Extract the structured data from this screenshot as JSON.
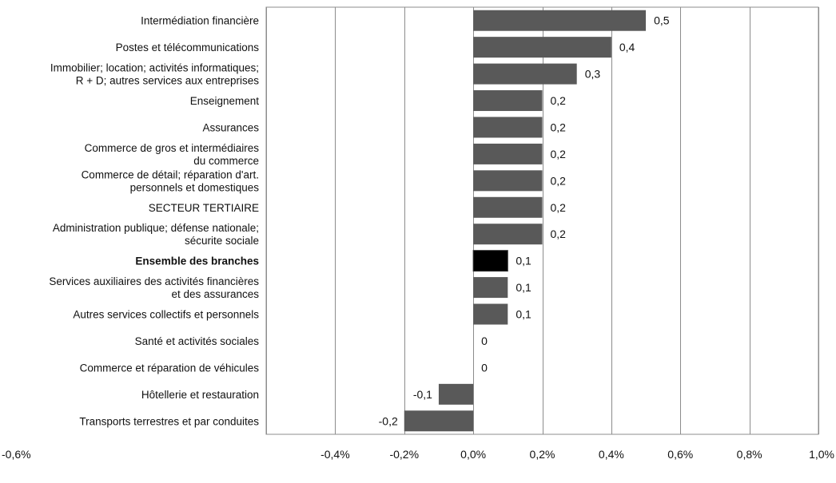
{
  "chart_data": {
    "type": "bar",
    "orientation": "horizontal",
    "categories": [
      [
        "Intermédiation financière"
      ],
      [
        "Postes et télécommunications"
      ],
      [
        "Immobilier; location; activités informatiques;",
        "R + D; autres services aux entreprises"
      ],
      [
        "Enseignement"
      ],
      [
        "Assurances"
      ],
      [
        "Commerce de gros et intermédiaires",
        "du commerce"
      ],
      [
        "Commerce de détail; réparation d'art.",
        "personnels et domestiques"
      ],
      [
        "SECTEUR TERTIAIRE"
      ],
      [
        "Administration publique; défense nationale;",
        "sécurite sociale"
      ],
      [
        "Ensemble des branches"
      ],
      [
        "Services auxiliaires des activités financières",
        "et des assurances"
      ],
      [
        "Autres services collectifs et personnels"
      ],
      [
        "Santé et activités sociales"
      ],
      [
        "Commerce et réparation de véhicules"
      ],
      [
        "Hôtellerie et restauration"
      ],
      [
        "Transports terrestres et par conduites"
      ]
    ],
    "values": [
      0.5,
      0.4,
      0.3,
      0.2,
      0.2,
      0.2,
      0.2,
      0.2,
      0.2,
      0.1,
      0.1,
      0.1,
      0,
      0,
      -0.1,
      -0.2
    ],
    "value_labels": [
      "0,5",
      "0,4",
      "0,3",
      "0,2",
      "0,2",
      "0,2",
      "0,2",
      "0,2",
      "0,2",
      "0,1",
      "0,1",
      "0,1",
      "0",
      "0",
      "-0,1",
      "-0,2"
    ],
    "highlighted_category_index": 9,
    "xlim": [
      -0.6,
      1.0
    ],
    "x_ticks": [
      -0.6,
      -0.4,
      -0.2,
      0.0,
      0.2,
      0.4,
      0.6,
      0.8,
      1.0
    ],
    "x_tick_labels": [
      "-0,6%",
      "-0,4%",
      "-0,2%",
      "0,0%",
      "0,2%",
      "0,4%",
      "0,6%",
      "0,8%",
      "1,0%"
    ],
    "grid": "vertical",
    "legend": "none",
    "title": "",
    "xlabel": "",
    "ylabel": "",
    "colors": {
      "bar": "#595959",
      "highlight": "#000000",
      "grid": "#8c8c8c",
      "border": "#8c8c8c"
    }
  }
}
